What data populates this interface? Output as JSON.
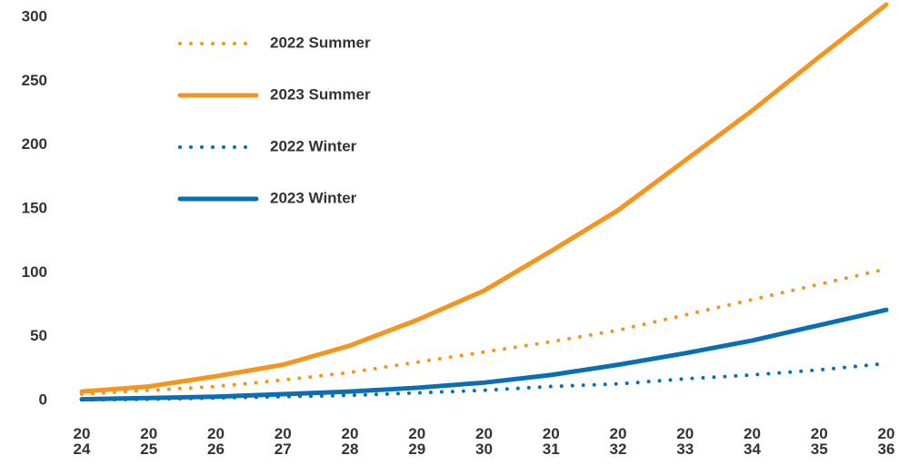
{
  "chart_data": {
    "type": "line",
    "categories": [
      "2024",
      "2025",
      "2026",
      "2027",
      "2028",
      "2029",
      "2030",
      "2031",
      "2032",
      "2033",
      "2034",
      "2035",
      "2036"
    ],
    "series": [
      {
        "name": "2022 Summer",
        "color": "#F7941D",
        "style": "dotted",
        "values": [
          5,
          8,
          11,
          16,
          22,
          30,
          38,
          46,
          55,
          67,
          79,
          91,
          103
        ]
      },
      {
        "name": "2023 Summer",
        "color": "#F7941D",
        "style": "solid",
        "values": [
          7,
          11,
          19,
          28,
          43,
          63,
          86,
          117,
          149,
          188,
          227,
          269,
          310
        ]
      },
      {
        "name": "2022 Winter",
        "color": "#0A6EB4",
        "style": "dotted",
        "values": [
          0.5,
          1,
          2,
          3,
          4,
          6,
          8,
          11,
          13,
          17,
          20,
          24,
          29
        ]
      },
      {
        "name": "2023 Winter",
        "color": "#0A6EB4",
        "style": "solid",
        "values": [
          1,
          2,
          3,
          5,
          7,
          10,
          14,
          20,
          28,
          37,
          47,
          59,
          71
        ]
      }
    ],
    "ylim": [
      0,
      310
    ],
    "yticks": [
      0,
      50,
      100,
      150,
      200,
      250,
      300
    ],
    "grid": false,
    "legend": "top-left"
  }
}
